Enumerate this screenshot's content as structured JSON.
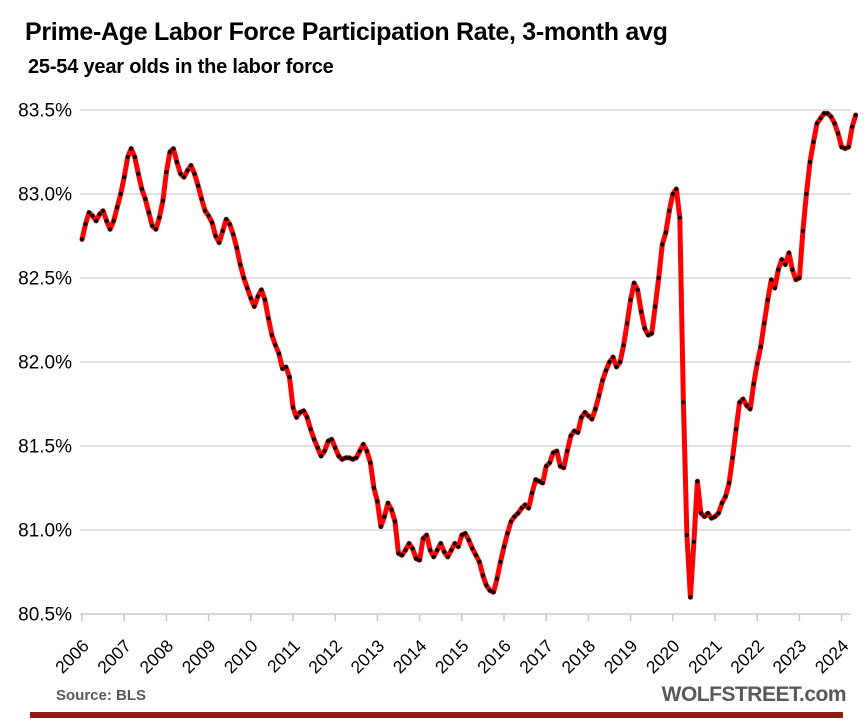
{
  "title": "Prime-Age Labor Force Participation Rate, 3-month avg",
  "subtitle": "25-54 year olds in the labor force",
  "footer": {
    "source": "Source: BLS",
    "brand": "WOLFSTREET.com"
  },
  "colors": {
    "line": "#FE0000",
    "marker": "#000000",
    "grid": "#D6D6D6",
    "axis": "#C8C8C8",
    "label_text": "#000000",
    "footer_text": "#595959",
    "bottom_bar": "#8B2012"
  },
  "chart_data": {
    "type": "line",
    "title": "Prime-Age Labor Force Participation Rate, 3-month avg",
    "subtitle": "25-54 year olds in the labor force",
    "ylabel": "",
    "xlabel": "",
    "grid": "horizontal",
    "legend": "none",
    "y_min": 80.5,
    "y_max": 83.5,
    "y_tick_labels": [
      "83.5%",
      "83.0%",
      "82.5%",
      "82.0%",
      "81.5%",
      "81.0%",
      "80.5%"
    ],
    "y_tick_values": [
      83.5,
      83.0,
      82.5,
      82.0,
      81.5,
      81.0,
      80.5
    ],
    "x_tick_labels": [
      "2006",
      "2007",
      "2008",
      "2009",
      "2010",
      "2011",
      "2012",
      "2013",
      "2014",
      "2015",
      "2016",
      "2017",
      "2018",
      "2019",
      "2020",
      "2021",
      "2022",
      "2023",
      "2024"
    ],
    "series": [
      {
        "name": "Prime-age labor force participation rate, 3-month average (%)",
        "frequency": "monthly",
        "start_year": 2006,
        "start_month": 1,
        "values": [
          82.73,
          82.82,
          82.89,
          82.87,
          82.84,
          82.88,
          82.9,
          82.84,
          82.79,
          82.84,
          82.92,
          83.0,
          83.1,
          83.22,
          83.27,
          83.22,
          83.12,
          83.03,
          82.97,
          82.89,
          82.81,
          82.79,
          82.86,
          82.96,
          83.13,
          83.25,
          83.27,
          83.19,
          83.12,
          83.1,
          83.14,
          83.17,
          83.12,
          83.05,
          82.97,
          82.9,
          82.87,
          82.83,
          82.75,
          82.71,
          82.78,
          82.85,
          82.82,
          82.76,
          82.68,
          82.58,
          82.5,
          82.44,
          82.38,
          82.33,
          82.39,
          82.43,
          82.37,
          82.26,
          82.16,
          82.1,
          82.05,
          81.96,
          81.97,
          81.91,
          81.73,
          81.67,
          81.7,
          81.71,
          81.67,
          81.6,
          81.54,
          81.49,
          81.44,
          81.47,
          81.53,
          81.54,
          81.49,
          81.44,
          81.42,
          81.43,
          81.43,
          81.42,
          81.43,
          81.47,
          81.51,
          81.47,
          81.4,
          81.25,
          81.17,
          81.02,
          81.08,
          81.16,
          81.12,
          81.05,
          80.86,
          80.85,
          80.88,
          80.92,
          80.89,
          80.83,
          80.82,
          80.95,
          80.97,
          80.88,
          80.84,
          80.88,
          80.92,
          80.87,
          80.84,
          80.88,
          80.92,
          80.9,
          80.97,
          80.98,
          80.94,
          80.89,
          80.85,
          80.81,
          80.73,
          80.67,
          80.64,
          80.63,
          80.71,
          80.81,
          80.9,
          80.98,
          81.05,
          81.08,
          81.1,
          81.13,
          81.15,
          81.13,
          81.22,
          81.3,
          81.29,
          81.28,
          81.38,
          81.4,
          81.46,
          81.47,
          81.38,
          81.37,
          81.47,
          81.56,
          81.59,
          81.58,
          81.67,
          81.7,
          81.68,
          81.66,
          81.72,
          81.8,
          81.89,
          81.95,
          82.0,
          82.03,
          81.97,
          82.0,
          82.1,
          82.23,
          82.37,
          82.47,
          82.43,
          82.3,
          82.2,
          82.16,
          82.17,
          82.33,
          82.5,
          82.7,
          82.77,
          82.9,
          83.0,
          83.03,
          82.86,
          81.76,
          80.97,
          80.6,
          80.93,
          81.29,
          81.1,
          81.08,
          81.1,
          81.07,
          81.08,
          81.1,
          81.16,
          81.2,
          81.28,
          81.43,
          81.6,
          81.76,
          81.78,
          81.74,
          81.72,
          81.87,
          81.99,
          82.09,
          82.23,
          82.37,
          82.49,
          82.44,
          82.55,
          82.61,
          82.58,
          82.65,
          82.55,
          82.49,
          82.5,
          82.78,
          83.0,
          83.19,
          83.31,
          83.42,
          83.45,
          83.48,
          83.48,
          83.46,
          83.42,
          83.36,
          83.28,
          83.27,
          83.28,
          83.4,
          83.47
        ]
      }
    ]
  }
}
